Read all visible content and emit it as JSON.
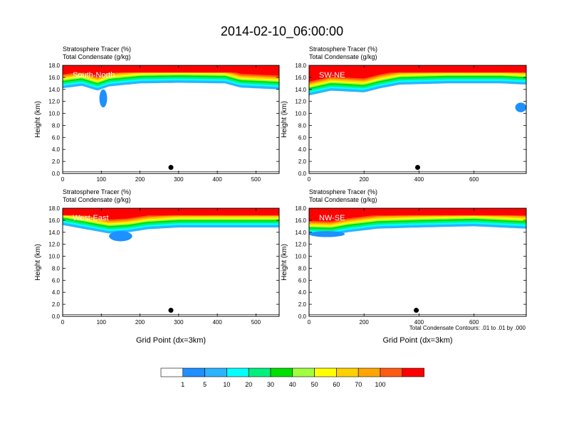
{
  "title": "2014-02-10_06:00:00",
  "colors": {
    "contour_levels": [
      "#ffffff",
      "#1e90ff",
      "#2ab4ff",
      "#00ffff",
      "#00f07f",
      "#00e000",
      "#a0ff40",
      "#ffff00",
      "#ffd000",
      "#ffa500",
      "#ff5a14",
      "#ff0000"
    ],
    "axis": "#000000"
  },
  "colorbar": {
    "labels": [
      "1",
      "5",
      "10",
      "20",
      "30",
      "40",
      "50",
      "60",
      "70",
      "100"
    ]
  },
  "contour_note": "Total Condensate Contours: .01 to .01 by .000",
  "chart_data": [
    {
      "type": "heatmap",
      "panel_label": "South-North",
      "title_lines": [
        "Stratosphere Tracer   (%)",
        "Total Condensate   (g/kg)"
      ],
      "ylabel": "Height (km)",
      "xlabel": "",
      "xlim": [
        0,
        560
      ],
      "ylim": [
        0,
        18
      ],
      "x_ticks": [
        "0",
        "100",
        "200",
        "300",
        "400",
        "500"
      ],
      "y_ticks": [
        "0.0",
        "2.0",
        "4.0",
        "6.0",
        "8.0",
        "10.0",
        "12.0",
        "14.0",
        "16.0",
        "18.0"
      ],
      "tracer_bottom": [
        [
          0,
          14.2
        ],
        [
          50,
          14.6
        ],
        [
          90,
          13.8
        ],
        [
          120,
          14.5
        ],
        [
          200,
          15.0
        ],
        [
          300,
          15.1
        ],
        [
          420,
          15.0
        ],
        [
          460,
          14.3
        ],
        [
          560,
          14.0
        ]
      ],
      "blobs": [
        {
          "x": [
            95,
            115
          ],
          "y": [
            11.0,
            14.0
          ]
        }
      ],
      "station_marker": {
        "x": 280,
        "y": 1.0
      }
    },
    {
      "type": "heatmap",
      "panel_label": "SW-NE",
      "title_lines": [
        "Stratosphere Tracer   (%)",
        "Total Condensate   (g/kg)"
      ],
      "ylabel": "Height (km)",
      "xlabel": "",
      "xlim": [
        0,
        790
      ],
      "ylim": [
        0,
        18
      ],
      "x_ticks": [
        "0",
        "200",
        "400",
        "600"
      ],
      "y_ticks": [
        "0.0",
        "2.0",
        "4.0",
        "6.0",
        "8.0",
        "10.0",
        "12.0",
        "14.0",
        "16.0",
        "18.0"
      ],
      "tracer_bottom": [
        [
          0,
          13.0
        ],
        [
          80,
          13.8
        ],
        [
          200,
          13.5
        ],
        [
          260,
          14.2
        ],
        [
          330,
          14.8
        ],
        [
          500,
          15.0
        ],
        [
          700,
          15.0
        ],
        [
          790,
          14.8
        ]
      ],
      "blobs": [
        {
          "x": [
            750,
            790
          ],
          "y": [
            10.2,
            11.8
          ]
        }
      ],
      "station_marker": {
        "x": 395,
        "y": 1.0
      }
    },
    {
      "type": "heatmap",
      "panel_label": "West-East",
      "title_lines": [
        "Stratosphere Tracer   (%)",
        "Total Condensate   (g/kg)"
      ],
      "ylabel": "Height (km)",
      "xlabel": "Grid Point (dx=3km)",
      "xlim": [
        0,
        560
      ],
      "ylim": [
        0,
        18
      ],
      "x_ticks": [
        "0",
        "100",
        "200",
        "300",
        "400",
        "500"
      ],
      "y_ticks": [
        "0.0",
        "2.0",
        "4.0",
        "6.0",
        "8.0",
        "10.0",
        "12.0",
        "14.0",
        "16.0",
        "18.0"
      ],
      "tracer_bottom": [
        [
          0,
          15.2
        ],
        [
          60,
          14.5
        ],
        [
          120,
          13.8
        ],
        [
          170,
          14.0
        ],
        [
          220,
          14.5
        ],
        [
          300,
          14.8
        ],
        [
          560,
          14.8
        ]
      ],
      "blobs": [
        {
          "x": [
            120,
            180
          ],
          "y": [
            12.5,
            14.2
          ]
        }
      ],
      "station_marker": {
        "x": 280,
        "y": 1.0
      }
    },
    {
      "type": "heatmap",
      "panel_label": "NW-SE",
      "title_lines": [
        "Stratosphere Tracer   (%)",
        "Total Condensate   (g/kg)"
      ],
      "ylabel": "Height (km)",
      "xlabel": "Grid Point (dx=3km)",
      "xlim": [
        0,
        790
      ],
      "ylim": [
        0,
        18
      ],
      "x_ticks": [
        "0",
        "200",
        "400",
        "600"
      ],
      "y_ticks": [
        "0.0",
        "2.0",
        "4.0",
        "6.0",
        "8.0",
        "10.0",
        "12.0",
        "14.0",
        "16.0",
        "18.0"
      ],
      "tracer_bottom": [
        [
          0,
          13.6
        ],
        [
          80,
          13.5
        ],
        [
          140,
          14.0
        ],
        [
          250,
          14.6
        ],
        [
          400,
          14.8
        ],
        [
          600,
          15.0
        ],
        [
          790,
          14.6
        ]
      ],
      "blobs": [
        {
          "x": [
            0,
            130
          ],
          "y": [
            13.2,
            14.2
          ]
        }
      ],
      "station_marker": {
        "x": 390,
        "y": 1.0
      }
    }
  ]
}
